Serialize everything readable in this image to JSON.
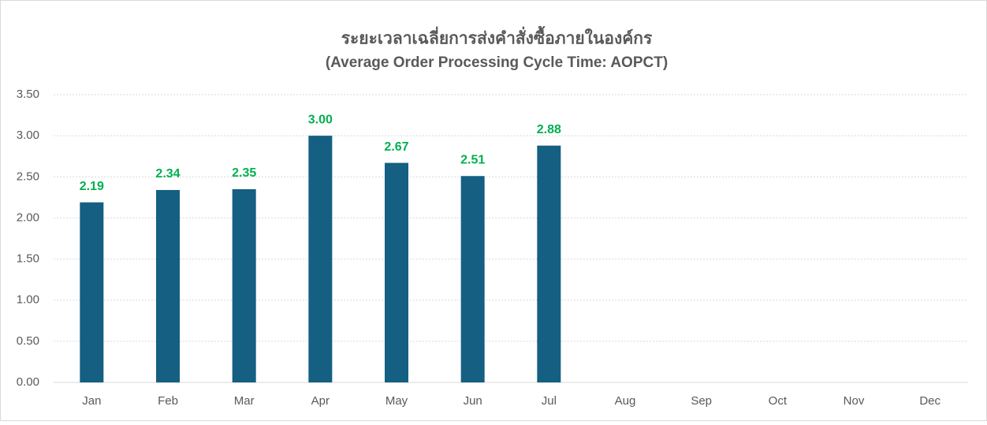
{
  "chart_data": {
    "type": "bar",
    "title": "ระยะเวลาเฉลี่ยการส่งคำสั่งซื้อภายในองค์กร",
    "subtitle": "(Average Order Processing Cycle Time: AOPCT)",
    "categories": [
      "Jan",
      "Feb",
      "Mar",
      "Apr",
      "May",
      "Jun",
      "Jul",
      "Aug",
      "Sep",
      "Oct",
      "Nov",
      "Dec"
    ],
    "values": [
      2.19,
      2.34,
      2.35,
      3,
      2.67,
      2.51,
      2.88,
      null,
      null,
      null,
      null,
      null
    ],
    "value_labels": [
      "2.19",
      "2.34",
      "2.35",
      "3.00",
      "2.67",
      "2.51",
      "2.88",
      null,
      null,
      null,
      null,
      null
    ],
    "color": "#145f82",
    "label_color": "#00b050",
    "ylim": [
      0,
      3.5
    ],
    "yticks": [
      {
        "value": 0,
        "label": "0.00"
      },
      {
        "value": 0.5,
        "label": "0.50"
      },
      {
        "value": 1,
        "label": "1.00"
      },
      {
        "value": 1.5,
        "label": "1.50"
      },
      {
        "value": 2,
        "label": "2.00"
      },
      {
        "value": 2.5,
        "label": "2.50"
      },
      {
        "value": 3,
        "label": "3.00"
      },
      {
        "value": 3.5,
        "label": "3.50"
      }
    ],
    "grid": true
  }
}
